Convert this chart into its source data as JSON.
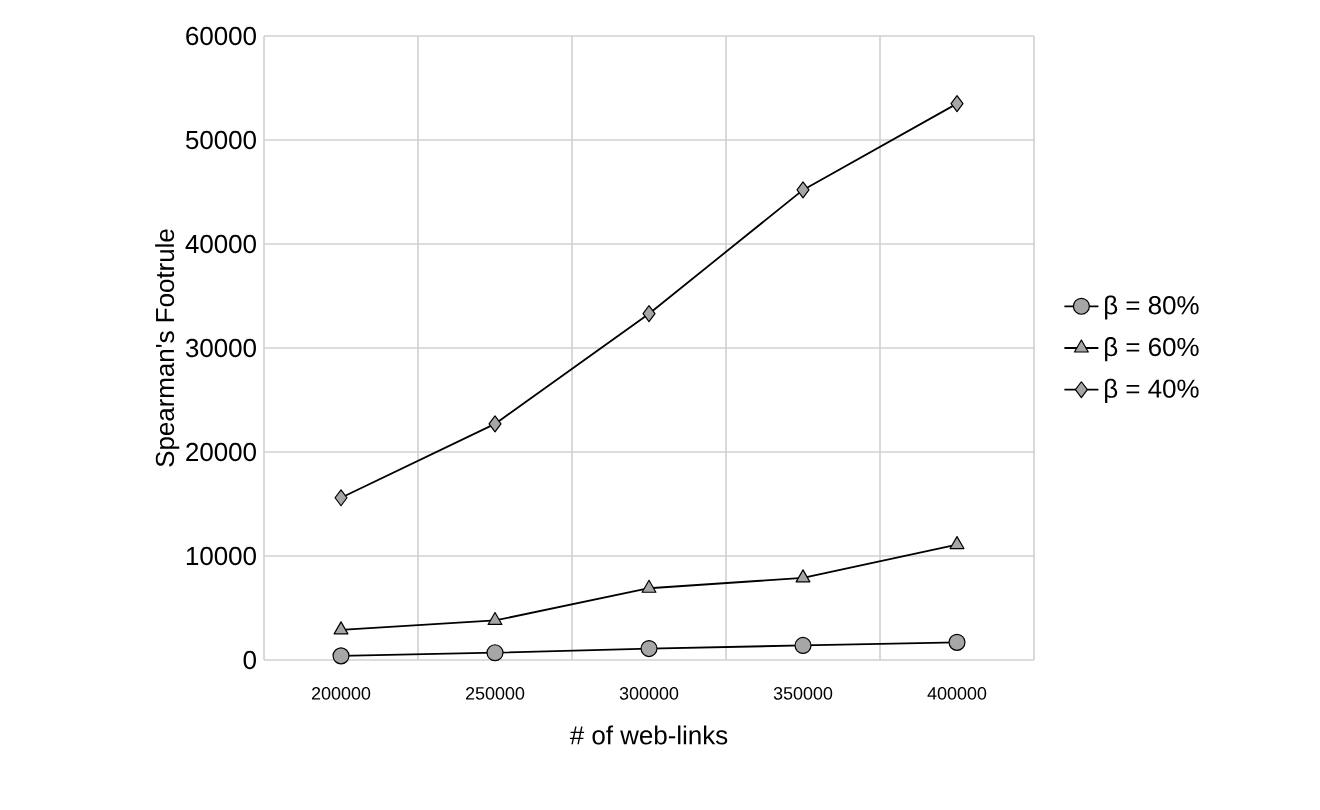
{
  "chart_data": {
    "type": "line",
    "xlabel": "# of web-links",
    "ylabel": "Spearman's Footrule",
    "categories": [
      "200000",
      "250000",
      "300000",
      "350000",
      "400000"
    ],
    "series": [
      {
        "name": "β = 80%",
        "color": "#a6a6a6",
        "marker": "circle",
        "values": [
          400,
          700,
          1100,
          1400,
          1700
        ]
      },
      {
        "name": "β = 60%",
        "color": "#a6a6a6",
        "marker": "triangle",
        "values": [
          2900,
          3800,
          6900,
          7900,
          11100
        ]
      },
      {
        "name": "β = 40%",
        "color": "#a6a6a6",
        "marker": "diamond",
        "values": [
          15600,
          22700,
          33300,
          45200,
          53500
        ]
      }
    ],
    "ylim": [
      0,
      60000
    ],
    "yticks": [
      0,
      10000,
      20000,
      30000,
      40000,
      50000,
      60000
    ],
    "grid": true,
    "legend": "right",
    "line_style": "solid"
  }
}
